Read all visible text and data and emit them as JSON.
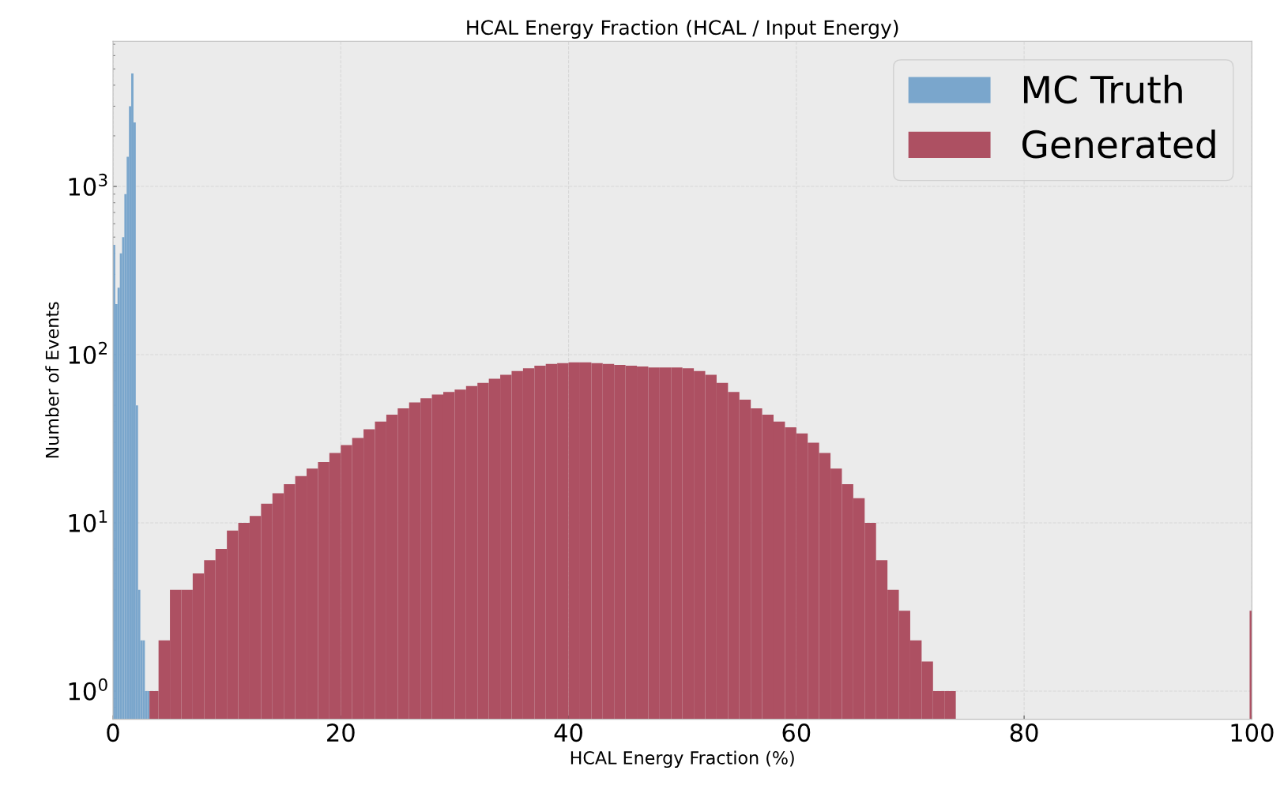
{
  "chart_data": {
    "type": "histogram",
    "title": "HCAL Energy Fraction (HCAL / Input Energy)",
    "xlabel": "HCAL Energy Fraction (%)",
    "ylabel": "Number of Events",
    "log": "y",
    "grid": true,
    "legend": "top right",
    "xlim": [
      0,
      100
    ],
    "xticks": [
      0,
      20,
      40,
      60,
      80,
      100
    ],
    "ylim": [
      0.68,
      7300
    ],
    "yticks": [
      {
        "value": 1,
        "label": "10$^{0}$"
      },
      {
        "value": 10,
        "label": "10$^{1}$"
      },
      {
        "value": 100,
        "label": "10$^{2}$"
      },
      {
        "value": 1000,
        "label": "10$^{3}$"
      }
    ],
    "bins": [
      0,
      0.2,
      0.4,
      0.6,
      0.8,
      1.0,
      1.2,
      1.4,
      1.6,
      1.8,
      2.0,
      2.2,
      2.4,
      2.6,
      2.8,
      3.0,
      3.2,
      4,
      5,
      6,
      7,
      8,
      9,
      10,
      11,
      12,
      13,
      14,
      15,
      16,
      17,
      18,
      19,
      20,
      21,
      22,
      23,
      24,
      25,
      26,
      27,
      28,
      29,
      30,
      31,
      32,
      33,
      34,
      35,
      36,
      37,
      38,
      39,
      40,
      41,
      42,
      43,
      44,
      45,
      46,
      47,
      48,
      49,
      50,
      51,
      52,
      53,
      54,
      55,
      56,
      57,
      58,
      59,
      60,
      61,
      62,
      63,
      64,
      65,
      66,
      67,
      68,
      69,
      70,
      71,
      72,
      73,
      74,
      99.8,
      100
    ],
    "series": [
      {
        "name": "MC Truth",
        "color": "#7aa6cc",
        "values": [
          450,
          200,
          250,
          400,
          500,
          900,
          1500,
          3000,
          4700,
          2400,
          50,
          4,
          2,
          2,
          1,
          1,
          null,
          null,
          null,
          null,
          null,
          null,
          null,
          null,
          null,
          null,
          null,
          null,
          null,
          null,
          null,
          null,
          null,
          null,
          null,
          null,
          null,
          null,
          null,
          null,
          null,
          null,
          null,
          null,
          null,
          null,
          null,
          null,
          null,
          null,
          null,
          null,
          null,
          null,
          null,
          null,
          null,
          null,
          null,
          null,
          null,
          null,
          null,
          null,
          null,
          null,
          null,
          null,
          null,
          null,
          null,
          null,
          null,
          null,
          null,
          null,
          null,
          null,
          null,
          null,
          null,
          null,
          null,
          null,
          null,
          null,
          null,
          null,
          null
        ]
      },
      {
        "name": "Generated",
        "color": "#ad5062",
        "values": [
          null,
          null,
          null,
          null,
          null,
          null,
          null,
          null,
          null,
          null,
          null,
          null,
          null,
          null,
          null,
          null,
          1,
          2,
          4,
          4,
          5,
          6,
          7,
          9,
          10,
          11,
          13,
          15,
          17,
          19,
          21,
          23,
          26,
          29,
          32,
          36,
          40,
          44,
          48,
          52,
          55,
          58,
          60,
          62,
          65,
          68,
          72,
          76,
          80,
          83,
          86,
          88,
          89,
          90,
          90,
          89,
          88,
          87,
          86,
          85,
          84,
          84,
          84,
          83,
          80,
          76,
          68,
          60,
          54,
          48,
          44,
          40,
          37,
          34,
          30,
          26,
          21,
          17,
          14,
          10,
          6,
          4,
          3,
          2,
          1.5,
          1,
          1,
          null,
          3
        ]
      }
    ]
  }
}
